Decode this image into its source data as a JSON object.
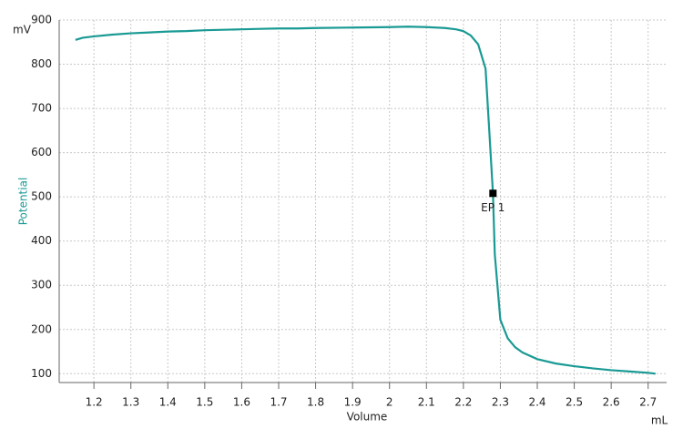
{
  "chart_data": {
    "type": "line",
    "x_label": "Volume",
    "x_unit": "mL",
    "y_label": "Potential",
    "y_unit": "mV",
    "x": [
      1.15,
      1.17,
      1.2,
      1.25,
      1.3,
      1.35,
      1.4,
      1.45,
      1.5,
      1.55,
      1.6,
      1.65,
      1.7,
      1.75,
      1.8,
      1.9,
      2.0,
      2.05,
      2.1,
      2.15,
      2.18,
      2.2,
      2.22,
      2.24,
      2.26,
      2.27,
      2.28,
      2.285,
      2.3,
      2.32,
      2.34,
      2.36,
      2.4,
      2.45,
      2.5,
      2.55,
      2.6,
      2.65,
      2.7,
      2.72
    ],
    "series": [
      {
        "name": "Potential",
        "color": "#1a9a94",
        "values": [
          855,
          860,
          863,
          867,
          870,
          872,
          874,
          875,
          877,
          878,
          879,
          880,
          881,
          881,
          882,
          883,
          884,
          885,
          884,
          882,
          879,
          875,
          865,
          845,
          790,
          650,
          508,
          370,
          222,
          180,
          160,
          148,
          133,
          123,
          117,
          112,
          108,
          105,
          102,
          100
        ]
      }
    ],
    "endpoints": [
      {
        "label": "EP 1",
        "x": 2.28,
        "y": 508,
        "color": "#000000"
      }
    ],
    "xlim": [
      1.106,
      2.75
    ],
    "xticks": [
      1.2,
      1.3,
      1.4,
      1.5,
      1.6,
      1.7,
      1.8,
      1.9,
      2.0,
      2.1,
      2.2,
      2.3,
      2.4,
      2.5,
      2.6,
      2.7
    ],
    "ylim": [
      80,
      900
    ],
    "yticks": [
      100,
      200,
      300,
      400,
      500,
      600,
      700,
      800,
      900
    ],
    "grid": true
  }
}
